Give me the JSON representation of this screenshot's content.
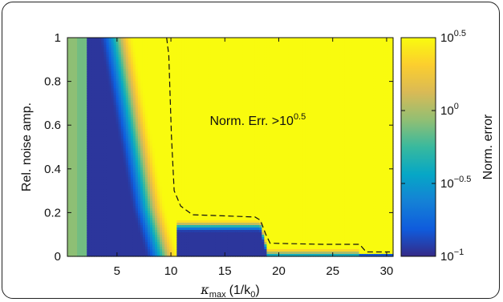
{
  "chart_data": {
    "type": "heatmap",
    "title": "",
    "xlabel_symbol": "κ",
    "xlabel_subscript": "max",
    "xlabel_units_prefix": "(1/k",
    "xlabel_units_subscript": "0",
    "xlabel_units_suffix": ")",
    "ylabel": "Rel. noise amp.",
    "xlim": [
      0.4,
      30.6
    ],
    "ylim": [
      0,
      1
    ],
    "xticks": [
      "5",
      "10",
      "15",
      "20",
      "25",
      "30"
    ],
    "xtick_values": [
      5,
      10,
      15,
      20,
      25,
      30
    ],
    "yticks": [
      "0",
      "0.2",
      "0.4",
      "0.6",
      "0.8",
      "1"
    ],
    "ytick_values": [
      0,
      0.2,
      0.4,
      0.6,
      0.8,
      1
    ],
    "colorbar": {
      "label": "Norm. error",
      "scale": "log10",
      "range_log10": [
        -1,
        0.5
      ],
      "ticks": [
        {
          "base": "10",
          "exp": "0.5",
          "log10": 0.5
        },
        {
          "base": "10",
          "exp": "0",
          "log10": 0
        },
        {
          "base": "10",
          "exp": "−0.5",
          "log10": -0.5
        },
        {
          "base": "10",
          "exp": "−1",
          "log10": -1
        }
      ],
      "colormap": "parula"
    },
    "annotation": {
      "text": "Norm. Err. >10",
      "exp": "0.5"
    },
    "contour_dashed": {
      "x": [
        9.6,
        9.8,
        10.05,
        10.3,
        10.9,
        12.0,
        15.0,
        17.8,
        18.3,
        18.8,
        19.2,
        24.0,
        27.5,
        28.1,
        30.3
      ],
      "y": [
        1.0,
        0.92,
        0.55,
        0.3,
        0.23,
        0.19,
        0.185,
        0.18,
        0.165,
        0.1,
        0.06,
        0.055,
        0.055,
        0.02,
        0.02
      ]
    },
    "region_boundaries": {
      "left_band_color_x": [
        0.4,
        2.3
      ],
      "dark_band_x": [
        2.3,
        6.3
      ],
      "transition_top_x": [
        6.3,
        9.3
      ],
      "transition_bottom_x": [
        9.3,
        10.6
      ],
      "plateau_1_x": [
        10.6,
        18.3
      ],
      "plateau_1_y": 0.17,
      "plateau_2_x": [
        19.0,
        27.5
      ],
      "plateau_2_y": 0.04,
      "plateau_3_x": [
        27.5,
        30.6
      ],
      "plateau_3_y": 0.015
    }
  }
}
